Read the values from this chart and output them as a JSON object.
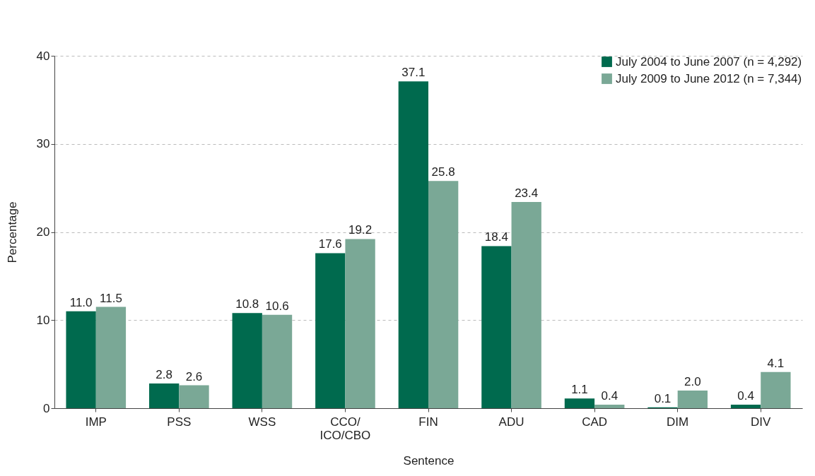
{
  "chart_data": {
    "type": "bar",
    "xlabel": "Sentence",
    "ylabel": "Percentage",
    "categories": [
      "IMP",
      "PSS",
      "WSS",
      "CCO/\nICO/CBO",
      "FIN",
      "ADU",
      "CAD",
      "DIM",
      "DIV"
    ],
    "series": [
      {
        "name": "July 2004 to June 2007 (n = 4,292)",
        "color": "#006a4e",
        "values": [
          11.0,
          2.8,
          10.8,
          17.6,
          37.1,
          18.4,
          1.1,
          0.1,
          0.4
        ],
        "value_labels": [
          "11.0",
          "2.8",
          "10.8",
          "17.6",
          "37.1",
          "18.4",
          "1.1",
          "0.1",
          "0.4"
        ]
      },
      {
        "name": "July 2009 to June 2012 (n = 7,344)",
        "color": "#7aa896",
        "values": [
          11.5,
          2.6,
          10.6,
          19.2,
          25.8,
          23.4,
          0.4,
          2.0,
          4.1
        ],
        "value_labels": [
          "11.5",
          "2.6",
          "10.6",
          "19.2",
          "25.8",
          "23.4",
          "0.4",
          "2.0",
          "4.1"
        ]
      }
    ],
    "ylim": [
      0,
      40
    ],
    "yticks": [
      0,
      10,
      20,
      30,
      40
    ],
    "grid": "y",
    "legend": "top right"
  }
}
